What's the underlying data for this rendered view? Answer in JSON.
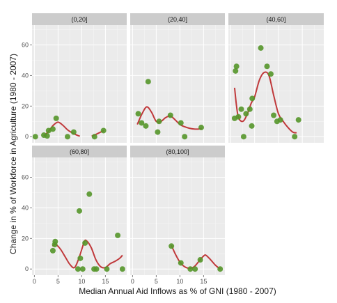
{
  "chart_data": {
    "type": "scatter",
    "title": "",
    "xlabel": "Median Annual Aid Inflows as % of GNI (1980 - 2007)",
    "ylabel": "Change in % of Workforce in Agriculture (1980 - 2007)",
    "xlim": [
      -0.5,
      19.5
    ],
    "ylim": [
      -4,
      73
    ],
    "x_ticks": [
      0,
      5,
      10,
      15
    ],
    "y_ticks": [
      0,
      20,
      40,
      60
    ],
    "grid": true,
    "point_color": "#55962a",
    "smooth_color": "#c0393b",
    "panels": [
      {
        "label": "(0,20]",
        "points": [
          [
            0.2,
            0
          ],
          [
            2,
            1
          ],
          [
            2.7,
            0.5
          ],
          [
            3,
            4
          ],
          [
            3.9,
            5
          ],
          [
            4.6,
            12
          ],
          [
            7,
            0
          ],
          [
            8.3,
            3
          ],
          [
            12.7,
            0
          ],
          [
            14.6,
            4
          ]
        ],
        "smooth": [
          [
            2,
            0.5
          ],
          [
            3,
            3.5
          ],
          [
            4,
            7.5
          ],
          [
            5,
            9.5
          ],
          [
            6,
            7.5
          ],
          [
            7,
            4.5
          ],
          [
            8,
            2.5
          ],
          [
            9,
            1
          ],
          [
            9.6,
            0.3
          ]
        ],
        "smooth2": [
          [
            12.1,
            0.3
          ],
          [
            13,
            1.5
          ],
          [
            14,
            3
          ],
          [
            14.7,
            4
          ]
        ]
      },
      {
        "label": "(20,40]",
        "points": [
          [
            1.2,
            15
          ],
          [
            1.9,
            9
          ],
          [
            2.8,
            7
          ],
          [
            3.3,
            36
          ],
          [
            5.3,
            3
          ],
          [
            5.6,
            10
          ],
          [
            8,
            14
          ],
          [
            10.2,
            9
          ],
          [
            11,
            0
          ],
          [
            14.5,
            6
          ]
        ],
        "smooth": [
          [
            1,
            8
          ],
          [
            2,
            15
          ],
          [
            3,
            19.5
          ],
          [
            4,
            16
          ],
          [
            5,
            10
          ],
          [
            6,
            10
          ],
          [
            7,
            12.5
          ],
          [
            8,
            13.5
          ],
          [
            9,
            11
          ],
          [
            10,
            8
          ],
          [
            11,
            6.5
          ],
          [
            12,
            5.5
          ],
          [
            13,
            5
          ],
          [
            14,
            5
          ],
          [
            14.6,
            5.5
          ]
        ]
      },
      {
        "label": "(40,60]",
        "points": [
          [
            0.8,
            12
          ],
          [
            1,
            43
          ],
          [
            1.2,
            46
          ],
          [
            1.6,
            13
          ],
          [
            2.2,
            18
          ],
          [
            2.7,
            0
          ],
          [
            3.2,
            15
          ],
          [
            4,
            18
          ],
          [
            4.4,
            7
          ],
          [
            4.5,
            25
          ],
          [
            6.3,
            58
          ],
          [
            7.6,
            46
          ],
          [
            8.4,
            41
          ],
          [
            9,
            14
          ],
          [
            9.7,
            10
          ],
          [
            10.4,
            11
          ],
          [
            13.4,
            0
          ],
          [
            14.2,
            11
          ]
        ],
        "smooth": [
          [
            0.8,
            32
          ],
          [
            1.5,
            14
          ],
          [
            2.5,
            10
          ],
          [
            3.5,
            15
          ],
          [
            4.3,
            22
          ],
          [
            5,
            26
          ],
          [
            6,
            37
          ],
          [
            7,
            42
          ],
          [
            8,
            40
          ],
          [
            9,
            27
          ],
          [
            10,
            15
          ],
          [
            11,
            10
          ],
          [
            12,
            6
          ],
          [
            13,
            3
          ],
          [
            13.8,
            2.5
          ]
        ]
      },
      {
        "label": "(60,80]",
        "points": [
          [
            3.9,
            12
          ],
          [
            4.3,
            16
          ],
          [
            4.4,
            18
          ],
          [
            9.2,
            0
          ],
          [
            9.5,
            38
          ],
          [
            9.7,
            7
          ],
          [
            10.2,
            0
          ],
          [
            10.7,
            17
          ],
          [
            11.6,
            49
          ],
          [
            12.6,
            0
          ],
          [
            13.1,
            0
          ],
          [
            15.3,
            0
          ],
          [
            17.6,
            22
          ],
          [
            18.6,
            0
          ]
        ],
        "smooth": [
          [
            3.8,
            15
          ],
          [
            4.5,
            16
          ],
          [
            5.5,
            13
          ],
          [
            6.5,
            8
          ],
          [
            7.5,
            3
          ],
          [
            8.5,
            1
          ],
          [
            9.5,
            8
          ],
          [
            10.5,
            17.5
          ],
          [
            11,
            18.5
          ],
          [
            12,
            14
          ],
          [
            13,
            6
          ],
          [
            14,
            1.5
          ],
          [
            15,
            1
          ],
          [
            16,
            3.5
          ],
          [
            17,
            5
          ],
          [
            18,
            7
          ],
          [
            18.6,
            9
          ]
        ]
      },
      {
        "label": "(80,100]",
        "points": [
          [
            8.2,
            15
          ],
          [
            10.2,
            4
          ],
          [
            12.2,
            0
          ],
          [
            13.2,
            0
          ],
          [
            14.3,
            6
          ],
          [
            18.5,
            0
          ]
        ],
        "smooth": [
          [
            8.2,
            15.5
          ],
          [
            9,
            10
          ],
          [
            10,
            4.5
          ],
          [
            11,
            1.5
          ],
          [
            12,
            0.5
          ],
          [
            13,
            1.5
          ],
          [
            14,
            5
          ],
          [
            15,
            8.5
          ],
          [
            15.5,
            9
          ],
          [
            16.5,
            6
          ],
          [
            17.5,
            2.5
          ],
          [
            18.5,
            0
          ]
        ]
      }
    ]
  }
}
